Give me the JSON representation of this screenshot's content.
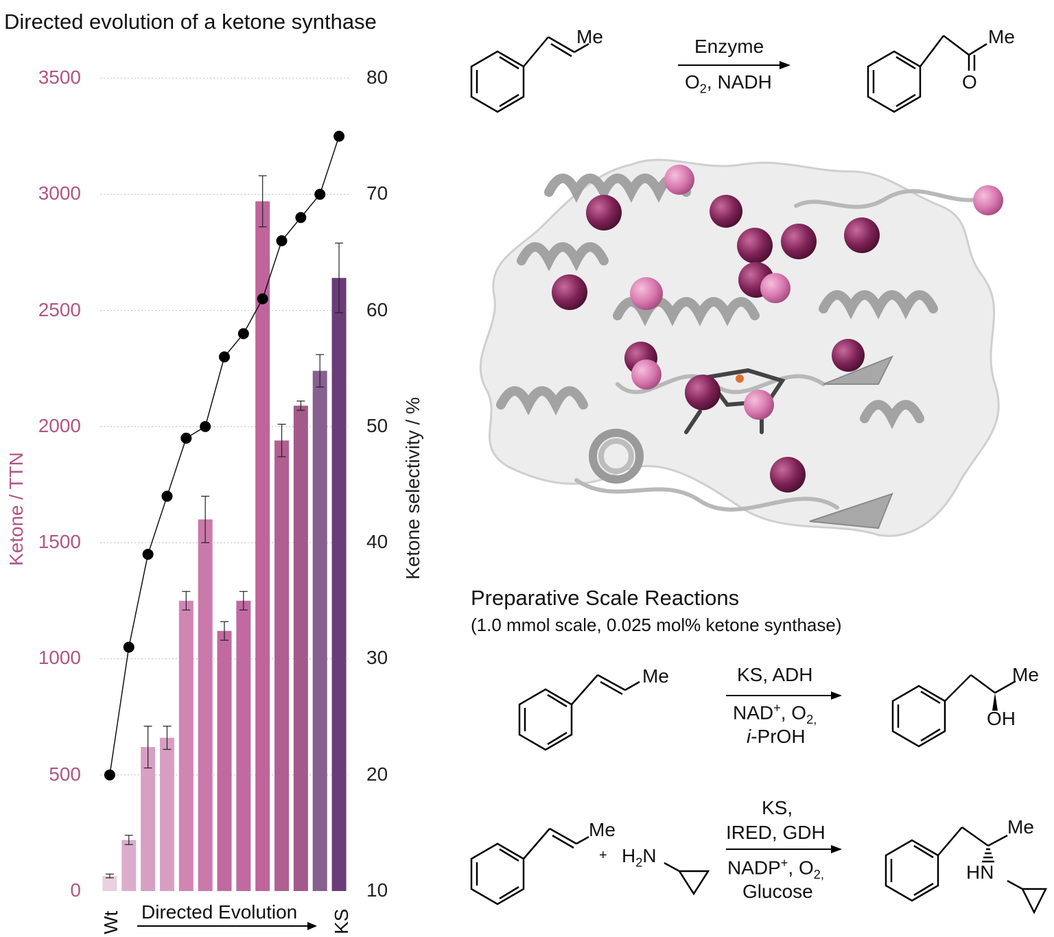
{
  "chart_data": {
    "type": "bar",
    "title": "Directed evolution of a ketone synthase",
    "categories": [
      "Wt",
      "",
      "",
      "",
      "",
      "",
      "",
      "",
      "",
      "",
      "",
      "",
      "KS"
    ],
    "x_label": "Directed Evolution",
    "left_axis": {
      "label": "Ketone / TTN",
      "ticks": [
        "0",
        "500",
        "1000",
        "1500",
        "2000",
        "2500",
        "3000",
        "3500"
      ],
      "range": [
        0,
        3500
      ]
    },
    "right_axis": {
      "label": "Ketone selectivity / %",
      "ticks": [
        "10",
        "20",
        "30",
        "40",
        "50",
        "60",
        "70",
        "80"
      ],
      "range": [
        10,
        80
      ]
    },
    "bars": {
      "values": [
        65,
        220,
        620,
        660,
        1250,
        1600,
        1120,
        1250,
        2970,
        1940,
        2090,
        2240,
        2640
      ],
      "errors": [
        8,
        20,
        90,
        50,
        40,
        100,
        40,
        40,
        110,
        70,
        20,
        70,
        150
      ],
      "colors": [
        "#ead0e0",
        "#dcaccb",
        "#d7a0c3",
        "#d89ec2",
        "#cf86b3",
        "#c97aaa",
        "#c16a9f",
        "#c06aa0",
        "#c0659c",
        "#b06090",
        "#a35a8a",
        "#87608f",
        "#6a3d78"
      ]
    },
    "line": {
      "values": [
        20,
        31,
        39,
        44,
        49,
        50,
        56,
        58,
        61,
        66,
        68,
        70,
        75
      ]
    },
    "grid": "horizontal dotted"
  },
  "right_panel": {
    "top_reaction": {
      "reagent_top": "Enzyme",
      "reagent_bottom_html": "O<sub>2</sub>, NADH",
      "sm_me": "Me",
      "prod_me": "Me",
      "prod_o": "O"
    },
    "section_title": "Preparative Scale Reactions",
    "section_sub": "(1.0 mmol scale, 0.025 mol% ketone synthase)",
    "rxn2": {
      "top": "KS, ADH",
      "bottom1_html": "NAD<sup>+</sup>, O<sub>2,</sub>",
      "bottom2_html": "<i>i</i>-PrOH",
      "sm_me": "Me",
      "prod_me": "Me",
      "prod_oh": "OH"
    },
    "rxn3": {
      "top1": "KS,",
      "top2": "IRED, GDH",
      "bottom1_html": "NADP<sup>+</sup>, O<sub>2,</sub>",
      "bottom2": "Glucose",
      "sm_me": "Me",
      "plus": "+",
      "amine_html": "H<sub>2</sub>N",
      "prod_me": "Me",
      "prod_hn": "HN"
    }
  }
}
